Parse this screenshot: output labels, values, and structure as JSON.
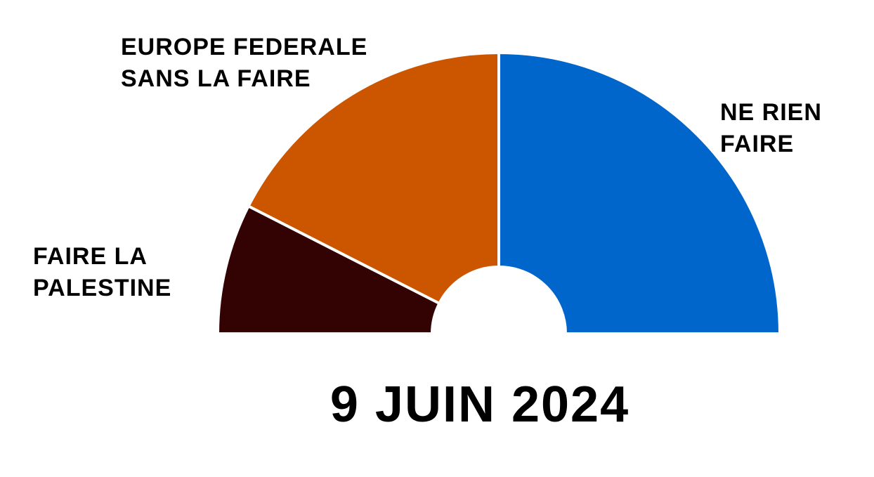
{
  "chart_data": {
    "type": "semi-donut",
    "title": "9 JUIN 2024",
    "categories": [
      "FAIRE LA\nPALESTINE",
      "EUROPE FEDERALE\nSANS LA FAIRE",
      "NE RIEN\nFAIRE"
    ],
    "values": [
      15,
      35,
      50
    ],
    "colors": [
      "#330304",
      "#cc5500",
      "#0066cc"
    ]
  }
}
